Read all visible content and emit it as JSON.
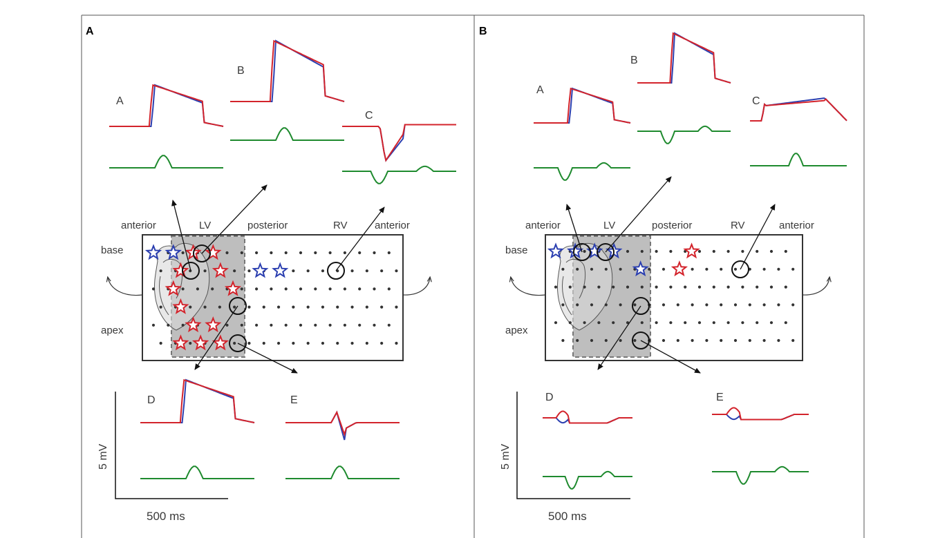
{
  "colors": {
    "trace_a": "#2b3fb0",
    "trace_b": "#d3232b",
    "trace_diff": "#1e8a2e",
    "star_blue": "#2b3fb0",
    "star_red": "#d3232b",
    "grid_dot": "#333333",
    "lv_region": "#b3b3b3"
  },
  "panels": [
    {
      "letter": "A",
      "orientation": {
        "top": [
          "anterior",
          "LV",
          "posterior",
          "RV",
          "anterior"
        ],
        "left": [
          "base",
          "apex"
        ]
      },
      "traces": [
        {
          "label": "A",
          "kind": "upstroke",
          "diff": "bump"
        },
        {
          "label": "B",
          "kind": "upstroke",
          "diff": "bump"
        },
        {
          "label": "C",
          "kind": "downstroke",
          "diff": "dip"
        },
        {
          "label": "D",
          "kind": "upstroke",
          "diff": "bump"
        },
        {
          "label": "E",
          "kind": "biphasic",
          "diff": "bump"
        }
      ],
      "stars": [
        {
          "row": 0,
          "col": 0,
          "color": "blue"
        },
        {
          "row": 0,
          "col": 1,
          "color": "blue"
        },
        {
          "row": 0,
          "col": 2,
          "color": "red"
        },
        {
          "row": 0,
          "col": 3,
          "color": "red"
        },
        {
          "row": 1,
          "col": 1,
          "color": "red"
        },
        {
          "row": 1,
          "col": 3,
          "color": "red"
        },
        {
          "row": 2,
          "col": 1,
          "color": "red"
        },
        {
          "row": 2,
          "col": 4,
          "color": "red"
        },
        {
          "row": 3,
          "col": 1,
          "color": "red"
        },
        {
          "row": 4,
          "col": 2,
          "color": "red"
        },
        {
          "row": 4,
          "col": 3,
          "color": "red"
        },
        {
          "row": 5,
          "col": 1,
          "color": "red"
        },
        {
          "row": 5,
          "col": 2,
          "color": "red"
        },
        {
          "row": 5,
          "col": 3,
          "color": "red"
        },
        {
          "row": 1,
          "col": 5,
          "color": "blue"
        },
        {
          "row": 1,
          "col": 6,
          "color": "blue"
        }
      ],
      "scale": {
        "voltage": "5 mV",
        "time": "500 ms"
      }
    },
    {
      "letter": "B",
      "orientation": {
        "top": [
          "anterior",
          "LV",
          "posterior",
          "RV",
          "anterior"
        ],
        "left": [
          "base",
          "apex"
        ]
      },
      "traces": [
        {
          "label": "A",
          "kind": "upstroke",
          "diff": "dip"
        },
        {
          "label": "B",
          "kind": "upstroke",
          "diff": "dip"
        },
        {
          "label": "C",
          "kind": "plateau",
          "diff": "bump"
        },
        {
          "label": "D",
          "kind": "flat",
          "diff": "dip"
        },
        {
          "label": "E",
          "kind": "flat",
          "diff": "dip"
        }
      ],
      "stars": [
        {
          "row": 0,
          "col": 0,
          "color": "blue"
        },
        {
          "row": 0,
          "col": 1,
          "color": "blue"
        },
        {
          "row": 0,
          "col": 2,
          "color": "blue"
        },
        {
          "row": 0,
          "col": 3,
          "color": "blue"
        },
        {
          "row": 1,
          "col": 4,
          "color": "blue"
        },
        {
          "row": 0,
          "col": 7,
          "color": "red"
        },
        {
          "row": 1,
          "col": 6,
          "color": "red"
        }
      ],
      "scale": {
        "voltage": "5 mV",
        "time": "500 ms"
      }
    }
  ]
}
